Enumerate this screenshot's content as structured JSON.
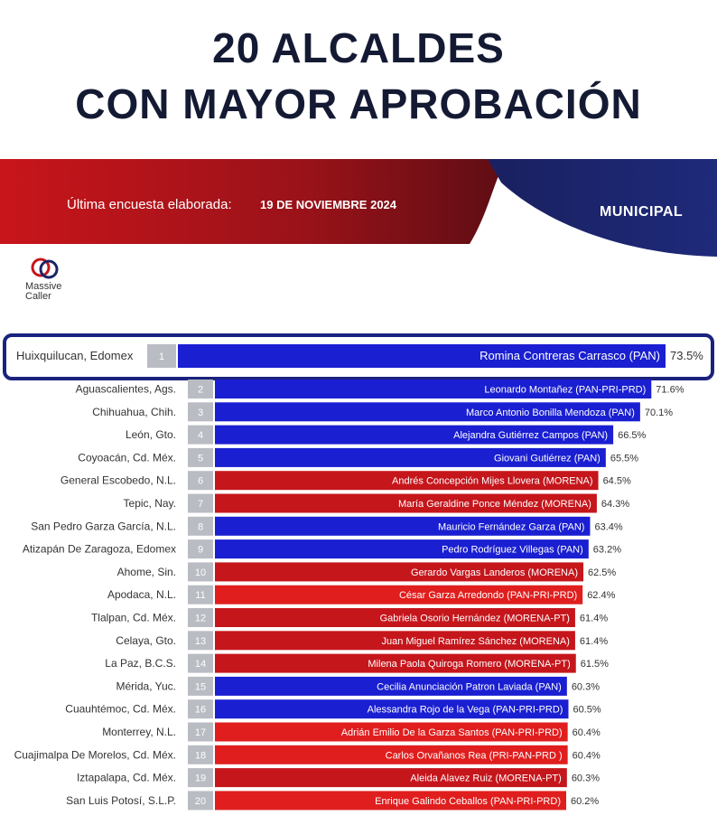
{
  "header": {
    "title_line1": "20 ALCALDES",
    "title_line2": "CON MAYOR APROBACIÓN"
  },
  "band": {
    "survey_label": "Última encuesta elaborada:",
    "survey_date": "19 DE NOVIEMBRE 2024",
    "scope": "MUNICIPAL"
  },
  "logo": {
    "line1": "Massive",
    "line2": "Caller"
  },
  "colors": {
    "pan_blue": "#1a1fd1",
    "morena_red": "#c5161c",
    "pri_red": "#e01e1e",
    "rank_gray": "#b9bcc2",
    "title": "#141a33",
    "band_red": "#a3141b",
    "band_navy": "#1b2466"
  },
  "chart_data": {
    "type": "bar",
    "title": "20 ALCALDES CON MAYOR APROBACIÓN",
    "xlabel": "",
    "ylabel": "",
    "xlim": [
      0,
      75
    ],
    "rows": [
      {
        "rank": "1",
        "municipality": "Huixquilucan, Edomex",
        "mayor": "Romina Contreras Carrasco (PAN)",
        "value": 73.5,
        "label": "73.5%",
        "color": "blue"
      },
      {
        "rank": "2",
        "municipality": "Aguascalientes, Ags.",
        "mayor": "Leonardo Montañez (PAN-PRI-PRD)",
        "value": 71.6,
        "label": "71.6%",
        "color": "blue"
      },
      {
        "rank": "3",
        "municipality": "Chihuahua, Chih.",
        "mayor": "Marco Antonio Bonilla Mendoza (PAN)",
        "value": 70.1,
        "label": "70.1%",
        "color": "blue"
      },
      {
        "rank": "4",
        "municipality": "León, Gto.",
        "mayor": "Alejandra Gutiérrez Campos (PAN)",
        "value": 66.5,
        "label": "66.5%",
        "color": "blue"
      },
      {
        "rank": "5",
        "municipality": "Coyoacán, Cd. Méx.",
        "mayor": "Giovani Gutiérrez (PAN)",
        "value": 65.5,
        "label": "65.5%",
        "color": "blue"
      },
      {
        "rank": "6",
        "municipality": "General Escobedo, N.L.",
        "mayor": "Andrés Concepción Mijes Llovera (MORENA)",
        "value": 64.5,
        "label": "64.5%",
        "color": "red"
      },
      {
        "rank": "7",
        "municipality": "Tepic, Nay.",
        "mayor": "María Geraldine Ponce Méndez (MORENA)",
        "value": 64.3,
        "label": "64.3%",
        "color": "red"
      },
      {
        "rank": "8",
        "municipality": "San Pedro Garza García, N.L.",
        "mayor": "Mauricio Fernández Garza (PAN)",
        "value": 63.4,
        "label": "63.4%",
        "color": "blue"
      },
      {
        "rank": "9",
        "municipality": "Atizapán De Zaragoza, Edomex",
        "mayor": "Pedro Rodríguez Villegas (PAN)",
        "value": 63.2,
        "label": "63.2%",
        "color": "blue"
      },
      {
        "rank": "10",
        "municipality": "Ahome, Sin.",
        "mayor": "Gerardo Vargas Landeros (MORENA)",
        "value": 62.5,
        "label": "62.5%",
        "color": "red"
      },
      {
        "rank": "11",
        "municipality": "Apodaca, N.L.",
        "mayor": "César Garza Arredondo (PAN-PRI-PRD)",
        "value": 62.4,
        "label": "62.4%",
        "color": "red2"
      },
      {
        "rank": "12",
        "municipality": "Tlalpan, Cd. Méx.",
        "mayor": "Gabriela Osorio Hernández (MORENA-PT)",
        "value": 61.4,
        "label": "61.4%",
        "color": "red"
      },
      {
        "rank": "13",
        "municipality": "Celaya, Gto.",
        "mayor": "Juan Miguel Ramírez Sánchez (MORENA)",
        "value": 61.4,
        "label": "61.4%",
        "color": "red"
      },
      {
        "rank": "14",
        "municipality": "La Paz, B.C.S.",
        "mayor": "Milena Paola Quiroga Romero (MORENA-PT)",
        "value": 61.5,
        "label": "61.5%",
        "color": "red"
      },
      {
        "rank": "15",
        "municipality": "Mérida, Yuc.",
        "mayor": "Cecilia Anunciación Patron Laviada (PAN)",
        "value": 60.3,
        "label": "60.3%",
        "color": "blue"
      },
      {
        "rank": "16",
        "municipality": "Cuauhtémoc, Cd. Méx.",
        "mayor": "Alessandra Rojo de la Vega (PAN-PRI-PRD)",
        "value": 60.5,
        "label": "60.5%",
        "color": "blue"
      },
      {
        "rank": "17",
        "municipality": "Monterrey, N.L.",
        "mayor": "Adrián Emilio De la Garza Santos (PAN-PRI-PRD)",
        "value": 60.4,
        "label": "60.4%",
        "color": "red2"
      },
      {
        "rank": "18",
        "municipality": "Cuajimalpa De Morelos, Cd. Méx.",
        "mayor": "Carlos Orvañanos Rea (PRI-PAN-PRD )",
        "value": 60.4,
        "label": "60.4%",
        "color": "red2"
      },
      {
        "rank": "19",
        "municipality": "Iztapalapa, Cd. Méx.",
        "mayor": "Aleida Alavez Ruiz (MORENA-PT)",
        "value": 60.3,
        "label": "60.3%",
        "color": "red"
      },
      {
        "rank": "20",
        "municipality": "San Luis Potosí, S.L.P.",
        "mayor": "Enrique Galindo Ceballos (PAN-PRI-PRD)",
        "value": 60.2,
        "label": "60.2%",
        "color": "red2"
      }
    ]
  }
}
